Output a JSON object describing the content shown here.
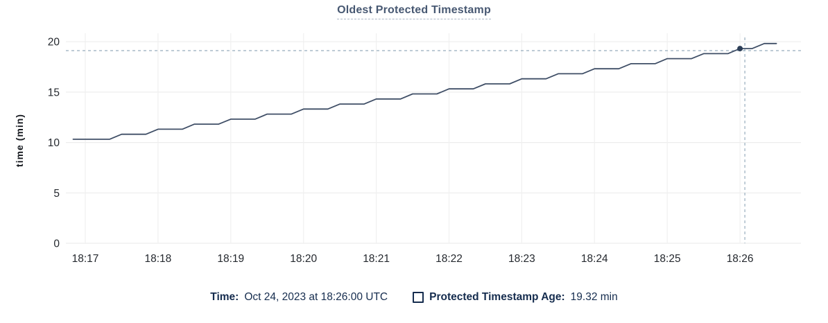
{
  "chart_data": {
    "type": "line",
    "title": "Oldest Protected Timestamp",
    "xlabel": "",
    "ylabel": "time (min)",
    "ylim": [
      0,
      20
    ],
    "yticks": [
      0,
      5,
      10,
      15,
      20
    ],
    "xticks": [
      "18:17",
      "18:18",
      "18:19",
      "18:20",
      "18:21",
      "18:22",
      "18:23",
      "18:24",
      "18:25",
      "18:26"
    ],
    "grid": true,
    "legend_position": "bottom",
    "line_style": "stepped-ramp",
    "series": [
      {
        "name": "Protected Timestamp Age",
        "unit": "min",
        "points": [
          [
            "18:16:50",
            10.32
          ],
          [
            "18:17:00",
            10.32
          ],
          [
            "18:17:10",
            10.32
          ],
          [
            "18:17:20",
            10.32
          ],
          [
            "18:17:30",
            10.82
          ],
          [
            "18:17:40",
            10.82
          ],
          [
            "18:17:50",
            10.82
          ],
          [
            "18:18:00",
            11.32
          ],
          [
            "18:18:10",
            11.32
          ],
          [
            "18:18:20",
            11.32
          ],
          [
            "18:18:30",
            11.82
          ],
          [
            "18:18:40",
            11.82
          ],
          [
            "18:18:50",
            11.82
          ],
          [
            "18:19:00",
            12.32
          ],
          [
            "18:19:10",
            12.32
          ],
          [
            "18:19:20",
            12.32
          ],
          [
            "18:19:30",
            12.82
          ],
          [
            "18:19:40",
            12.82
          ],
          [
            "18:19:50",
            12.82
          ],
          [
            "18:20:00",
            13.32
          ],
          [
            "18:20:10",
            13.32
          ],
          [
            "18:20:20",
            13.32
          ],
          [
            "18:20:30",
            13.82
          ],
          [
            "18:20:40",
            13.82
          ],
          [
            "18:20:50",
            13.82
          ],
          [
            "18:21:00",
            14.32
          ],
          [
            "18:21:10",
            14.32
          ],
          [
            "18:21:20",
            14.32
          ],
          [
            "18:21:30",
            14.82
          ],
          [
            "18:21:40",
            14.82
          ],
          [
            "18:21:50",
            14.82
          ],
          [
            "18:22:00",
            15.32
          ],
          [
            "18:22:10",
            15.32
          ],
          [
            "18:22:20",
            15.32
          ],
          [
            "18:22:30",
            15.82
          ],
          [
            "18:22:40",
            15.82
          ],
          [
            "18:22:50",
            15.82
          ],
          [
            "18:23:00",
            16.32
          ],
          [
            "18:23:10",
            16.32
          ],
          [
            "18:23:20",
            16.32
          ],
          [
            "18:23:30",
            16.82
          ],
          [
            "18:23:40",
            16.82
          ],
          [
            "18:23:50",
            16.82
          ],
          [
            "18:24:00",
            17.32
          ],
          [
            "18:24:10",
            17.32
          ],
          [
            "18:24:20",
            17.32
          ],
          [
            "18:24:30",
            17.82
          ],
          [
            "18:24:40",
            17.82
          ],
          [
            "18:24:50",
            17.82
          ],
          [
            "18:25:00",
            18.32
          ],
          [
            "18:25:10",
            18.32
          ],
          [
            "18:25:20",
            18.32
          ],
          [
            "18:25:30",
            18.82
          ],
          [
            "18:25:40",
            18.82
          ],
          [
            "18:25:50",
            18.82
          ],
          [
            "18:26:00",
            19.32
          ],
          [
            "18:26:10",
            19.32
          ],
          [
            "18:26:20",
            19.82
          ],
          [
            "18:26:30",
            19.82
          ]
        ]
      }
    ],
    "hover": {
      "time": "18:26:00",
      "value": 19.32
    }
  },
  "legend": {
    "time_label": "Time:",
    "time_value": "Oct 24, 2023 at 18:26:00 UTC",
    "series_label": "Protected Timestamp Age:",
    "series_value": "19.32 min"
  },
  "colors": {
    "line": "#3f4e66",
    "hover_dot": "#2c3e57",
    "crosshair": "#9fb3c2",
    "grid_horizontal": "#ededed",
    "grid_vertical": "#f0f0f0",
    "tick_text": "#24282e",
    "axis_title_text": "#16191f",
    "title_text": "#475872",
    "title_underline": "#aab6c6",
    "legend_text": "#152c4e",
    "background": "#ffffff"
  }
}
